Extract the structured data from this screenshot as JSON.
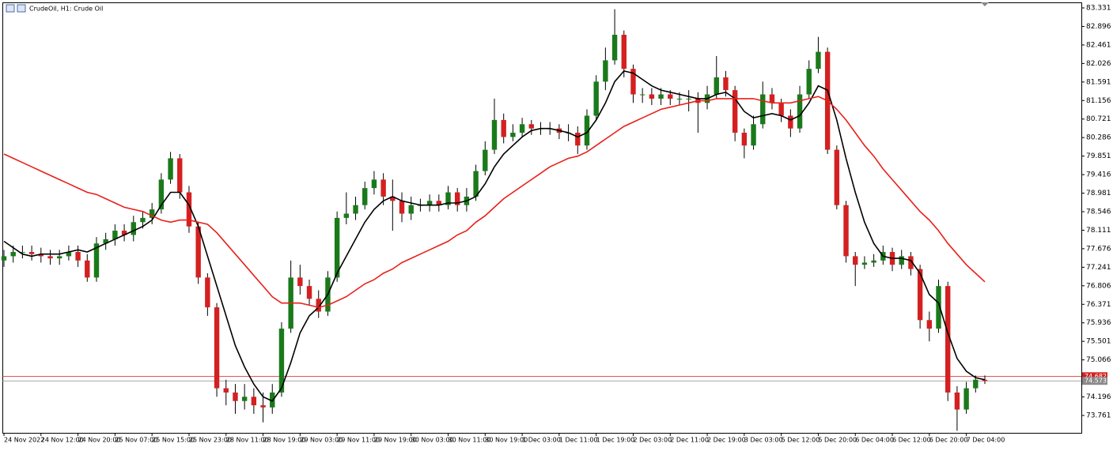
{
  "chart_data": {
    "type": "candlestick",
    "title": "CrudeOil, H1:  Crude Oil",
    "categories": [
      "24 Nov 2022",
      null,
      null,
      null,
      "24 Nov 12:00",
      null,
      null,
      null,
      "24 Nov 20:00",
      null,
      null,
      null,
      "25 Nov 07:00",
      null,
      null,
      null,
      "25 Nov 15:00",
      null,
      null,
      null,
      "25 Nov 23:00",
      null,
      null,
      null,
      "28 Nov 11:00",
      null,
      null,
      null,
      "28 Nov 19:00",
      null,
      null,
      null,
      "29 Nov 03:00",
      null,
      null,
      null,
      "29 Nov 11:00",
      null,
      null,
      null,
      "29 Nov 19:00",
      null,
      null,
      null,
      "30 Nov 03:00",
      null,
      null,
      null,
      "30 Nov 11:00",
      null,
      null,
      null,
      "30 Nov 19:00",
      null,
      null,
      null,
      "1 Dec 03:00",
      null,
      null,
      null,
      "1 Dec 11:00",
      null,
      null,
      null,
      "1 Dec 19:00",
      null,
      null,
      null,
      "2 Dec 03:00",
      null,
      null,
      null,
      "2 Dec 11:00",
      null,
      null,
      null,
      "2 Dec 19:00",
      null,
      null,
      null,
      "3 Dec 03:00",
      null,
      null,
      null,
      "5 Dec 12:00",
      null,
      null,
      null,
      "5 Dec 20:00",
      null,
      null,
      null,
      "6 Dec 04:00",
      null,
      null,
      null,
      "6 Dec 12:00",
      null,
      null,
      null,
      "6 Dec 20:00",
      null,
      null,
      null,
      "7 Dec 04:00",
      null,
      null
    ],
    "open": [
      77.4,
      77.5,
      77.6,
      77.6,
      77.55,
      77.5,
      77.45,
      77.5,
      77.6,
      77.4,
      77.0,
      77.8,
      77.9,
      78.1,
      78.0,
      78.3,
      78.4,
      78.6,
      79.3,
      79.8,
      79.0,
      78.2,
      77.0,
      76.3,
      74.4,
      74.3,
      74.1,
      74.2,
      74.0,
      73.95,
      74.3,
      75.8,
      77.0,
      76.8,
      76.5,
      76.2,
      77.0,
      78.4,
      78.5,
      78.7,
      79.1,
      79.3,
      78.9,
      78.8,
      78.5,
      78.7,
      78.7,
      78.8,
      78.7,
      79.0,
      78.7,
      78.9,
      79.5,
      80.0,
      80.7,
      80.3,
      80.4,
      80.6,
      80.5,
      80.5,
      80.5,
      80.4,
      80.4,
      80.1,
      80.8,
      81.6,
      82.1,
      82.7,
      81.9,
      81.3,
      81.3,
      81.2,
      81.3,
      81.2,
      81.2,
      81.2,
      81.1,
      81.3,
      81.7,
      81.4,
      80.4,
      80.1,
      80.6,
      81.3,
      81.1,
      80.8,
      80.5,
      81.3,
      81.9,
      82.3,
      80.0,
      78.7,
      77.5,
      77.3,
      77.35,
      77.4,
      77.6,
      77.3,
      77.5,
      77.2,
      76.0,
      75.8,
      76.8,
      74.3,
      73.9,
      74.4,
      74.6
    ],
    "high": [
      77.65,
      77.75,
      77.75,
      77.75,
      77.7,
      77.65,
      77.65,
      77.75,
      77.75,
      77.55,
      77.95,
      78.05,
      78.25,
      78.25,
      78.45,
      78.55,
      78.75,
      79.45,
      79.95,
      79.9,
      79.15,
      78.3,
      77.1,
      76.4,
      74.6,
      74.5,
      74.5,
      74.4,
      74.3,
      74.5,
      75.95,
      77.4,
      77.3,
      76.95,
      76.7,
      77.15,
      78.55,
      79.0,
      78.9,
      79.25,
      79.5,
      79.45,
      79.3,
      79.0,
      78.9,
      78.85,
      78.95,
      78.95,
      79.15,
      79.1,
      79.1,
      79.65,
      80.2,
      81.2,
      80.85,
      80.6,
      80.75,
      80.7,
      80.65,
      80.65,
      80.6,
      80.6,
      80.55,
      80.95,
      81.75,
      82.4,
      83.3,
      82.8,
      82.0,
      81.45,
      81.45,
      81.45,
      81.4,
      81.35,
      81.4,
      81.35,
      81.5,
      82.2,
      81.85,
      81.5,
      80.5,
      80.8,
      81.6,
      81.45,
      81.2,
      80.95,
      81.5,
      82.1,
      82.65,
      82.4,
      80.1,
      78.8,
      77.6,
      77.5,
      77.55,
      77.75,
      77.7,
      77.65,
      77.6,
      77.3,
      76.2,
      76.95,
      76.9,
      74.45,
      74.55,
      74.7,
      74.7
    ],
    "low": [
      77.25,
      77.35,
      77.45,
      77.4,
      77.35,
      77.3,
      77.3,
      77.4,
      77.25,
      76.9,
      76.9,
      77.65,
      77.75,
      77.85,
      77.85,
      78.15,
      78.25,
      78.5,
      79.2,
      78.85,
      78.05,
      76.85,
      76.1,
      74.2,
      74.0,
      73.8,
      73.9,
      73.8,
      73.6,
      73.8,
      74.2,
      75.7,
      76.6,
      76.35,
      76.05,
      76.1,
      76.9,
      78.25,
      78.35,
      78.6,
      78.95,
      78.7,
      78.1,
      78.3,
      78.35,
      78.55,
      78.55,
      78.55,
      78.6,
      78.55,
      78.55,
      78.8,
      79.4,
      79.9,
      80.15,
      80.2,
      80.3,
      80.35,
      80.35,
      80.35,
      80.25,
      80.2,
      79.9,
      80.0,
      80.7,
      81.4,
      82.0,
      81.7,
      81.1,
      81.1,
      81.05,
      81.05,
      81.05,
      81.05,
      80.9,
      80.4,
      80.95,
      81.2,
      81.25,
      80.2,
      79.8,
      80.0,
      80.5,
      80.95,
      80.65,
      80.3,
      80.4,
      81.2,
      81.8,
      79.9,
      78.6,
      77.35,
      76.8,
      77.2,
      77.25,
      77.3,
      77.15,
      77.2,
      77.05,
      75.8,
      75.5,
      75.7,
      74.1,
      73.4,
      73.8,
      74.3,
      74.5
    ],
    "close": [
      77.5,
      77.6,
      77.6,
      77.55,
      77.5,
      77.45,
      77.5,
      77.6,
      77.4,
      77.0,
      77.8,
      77.9,
      78.1,
      78.0,
      78.3,
      78.4,
      78.6,
      79.3,
      79.8,
      79.0,
      78.2,
      77.0,
      76.3,
      74.4,
      74.3,
      74.1,
      74.2,
      74.0,
      73.95,
      74.3,
      75.8,
      77.0,
      76.8,
      76.5,
      76.2,
      77.0,
      78.4,
      78.5,
      78.7,
      79.1,
      79.3,
      78.9,
      78.8,
      78.5,
      78.7,
      78.7,
      78.8,
      78.7,
      79.0,
      78.7,
      78.9,
      79.5,
      80.0,
      80.7,
      80.3,
      80.4,
      80.6,
      80.5,
      80.5,
      80.5,
      80.4,
      80.4,
      80.1,
      80.8,
      81.6,
      82.1,
      82.7,
      81.9,
      81.3,
      81.3,
      81.2,
      81.3,
      81.2,
      81.2,
      81.2,
      81.1,
      81.3,
      81.7,
      81.4,
      80.4,
      80.1,
      80.6,
      81.3,
      81.1,
      80.8,
      80.5,
      81.3,
      81.9,
      82.3,
      80.0,
      78.7,
      77.5,
      77.3,
      77.35,
      77.4,
      77.6,
      77.3,
      77.5,
      77.2,
      76.0,
      75.8,
      76.8,
      74.3,
      73.9,
      74.4,
      74.6,
      74.57
    ],
    "up_color": "#1a7a1a",
    "down_color": "#d42020",
    "series": [
      {
        "color": "#000000",
        "values": [
          77.85,
          77.7,
          77.55,
          77.5,
          77.55,
          77.55,
          77.55,
          77.6,
          77.65,
          77.6,
          77.7,
          77.8,
          77.9,
          78.0,
          78.1,
          78.2,
          78.35,
          78.7,
          79.0,
          79.0,
          78.7,
          78.2,
          77.5,
          76.8,
          76.1,
          75.4,
          74.9,
          74.5,
          74.2,
          74.1,
          74.4,
          75.0,
          75.7,
          76.1,
          76.3,
          76.6,
          77.1,
          77.5,
          77.9,
          78.3,
          78.6,
          78.8,
          78.9,
          78.8,
          78.75,
          78.7,
          78.7,
          78.7,
          78.75,
          78.75,
          78.8,
          78.9,
          79.2,
          79.6,
          79.9,
          80.1,
          80.3,
          80.45,
          80.5,
          80.5,
          80.45,
          80.4,
          80.3,
          80.4,
          80.7,
          81.1,
          81.6,
          81.85,
          81.8,
          81.65,
          81.5,
          81.4,
          81.35,
          81.3,
          81.25,
          81.2,
          81.2,
          81.3,
          81.35,
          81.2,
          80.9,
          80.75,
          80.8,
          80.85,
          80.8,
          80.7,
          80.8,
          81.1,
          81.5,
          81.4,
          80.7,
          79.8,
          79.0,
          78.3,
          77.8,
          77.5,
          77.45,
          77.45,
          77.4,
          77.1,
          76.6,
          76.4,
          75.7,
          75.1,
          74.8,
          74.65,
          74.6
        ]
      },
      {
        "color": "#e8201a",
        "values": [
          79.9,
          79.8,
          79.7,
          79.6,
          79.5,
          79.4,
          79.3,
          79.2,
          79.1,
          79.0,
          78.95,
          78.85,
          78.75,
          78.65,
          78.6,
          78.55,
          78.45,
          78.35,
          78.3,
          78.35,
          78.35,
          78.3,
          78.25,
          78.05,
          77.8,
          77.55,
          77.3,
          77.05,
          76.8,
          76.55,
          76.4,
          76.4,
          76.4,
          76.35,
          76.3,
          76.35,
          76.45,
          76.55,
          76.7,
          76.85,
          76.95,
          77.1,
          77.2,
          77.35,
          77.45,
          77.55,
          77.65,
          77.75,
          77.85,
          78.0,
          78.1,
          78.3,
          78.45,
          78.65,
          78.85,
          79.0,
          79.15,
          79.3,
          79.45,
          79.6,
          79.7,
          79.8,
          79.85,
          79.95,
          80.1,
          80.25,
          80.4,
          80.55,
          80.65,
          80.75,
          80.85,
          80.95,
          81.0,
          81.05,
          81.1,
          81.15,
          81.15,
          81.2,
          81.2,
          81.2,
          81.2,
          81.2,
          81.15,
          81.1,
          81.1,
          81.1,
          81.15,
          81.2,
          81.25,
          81.15,
          80.95,
          80.7,
          80.4,
          80.1,
          79.85,
          79.55,
          79.3,
          79.05,
          78.8,
          78.55,
          78.35,
          78.1,
          77.8,
          77.55,
          77.3,
          77.1,
          76.9
        ]
      }
    ],
    "price_lines": [
      {
        "value": 74.682,
        "color": "#d42020"
      },
      {
        "value": 74.573,
        "color": "#8a8a8a"
      }
    ],
    "ylim": [
      73.353,
      83.461
    ],
    "yticks": [
      83.331,
      82.896,
      82.461,
      82.026,
      81.591,
      81.156,
      80.721,
      80.286,
      79.851,
      79.416,
      78.981,
      78.546,
      78.111,
      77.676,
      77.241,
      76.806,
      76.371,
      75.936,
      75.501,
      75.066,
      74.196,
      73.761
    ]
  }
}
